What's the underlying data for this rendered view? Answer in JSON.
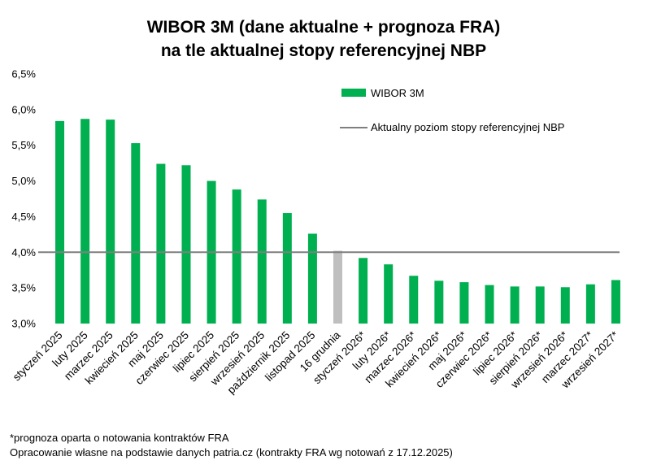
{
  "chart_data": {
    "type": "bar",
    "title": [
      "WIBOR 3M (dane aktualne + prognoza FRA)",
      "na tle aktualnej stopy referencyjnej NBP"
    ],
    "categories": [
      "styczeń 2025",
      "luty 2025",
      "marzec 2025",
      "kwiecień 2025",
      "maj 2025",
      "czerwiec 2025",
      "lipiec 2025",
      "sierpień 2025",
      "wrzesień 2025",
      "październik 2025",
      "listopad 2025",
      "16 grudnia",
      "styczeń 2026*",
      "luty 2026*",
      "marzec 2026*",
      "kwiecień 2026*",
      "maj 2026*",
      "czerwiec 2026*",
      "lipiec 2026*",
      "sierpień 2026*",
      "wrzesień 2026*",
      "marzec 2027*",
      "wrzesień 2027*"
    ],
    "series": [
      {
        "name": "WIBOR 3M",
        "values": [
          5.84,
          5.87,
          5.86,
          5.53,
          5.24,
          5.22,
          5.0,
          4.88,
          4.74,
          4.55,
          4.26,
          4.02,
          3.92,
          3.83,
          3.67,
          3.6,
          3.58,
          3.54,
          3.52,
          3.52,
          3.51,
          3.55,
          3.61
        ],
        "color": "#00b050",
        "highlight_index": 11,
        "highlight_color": "#bfbfbf"
      }
    ],
    "reference_line": {
      "name": "Aktualny poziom stopy referencyjnej NBP",
      "value": 4.0,
      "color": "#7f7f7f"
    },
    "ylim": [
      3.0,
      6.5
    ],
    "yticks": [
      {
        "value": 3.0,
        "label": "3,0%"
      },
      {
        "value": 3.5,
        "label": "3,5%"
      },
      {
        "value": 4.0,
        "label": "4,0%"
      },
      {
        "value": 4.5,
        "label": "4,5%"
      },
      {
        "value": 5.0,
        "label": "5,0%"
      },
      {
        "value": 5.5,
        "label": "5,5%"
      },
      {
        "value": 6.0,
        "label": "6,0%"
      },
      {
        "value": 6.5,
        "label": "6,5%"
      }
    ],
    "xlabel": "",
    "ylabel": "",
    "grid": false,
    "legend_position": "top-right"
  },
  "footnotes": {
    "line1": "*prognoza oparta o notowania kontraktów FRA",
    "line2": "Opracowanie własne na podstawie danych patria.cz (kontrakty FRA wg notowań z 17.12.2025)"
  }
}
